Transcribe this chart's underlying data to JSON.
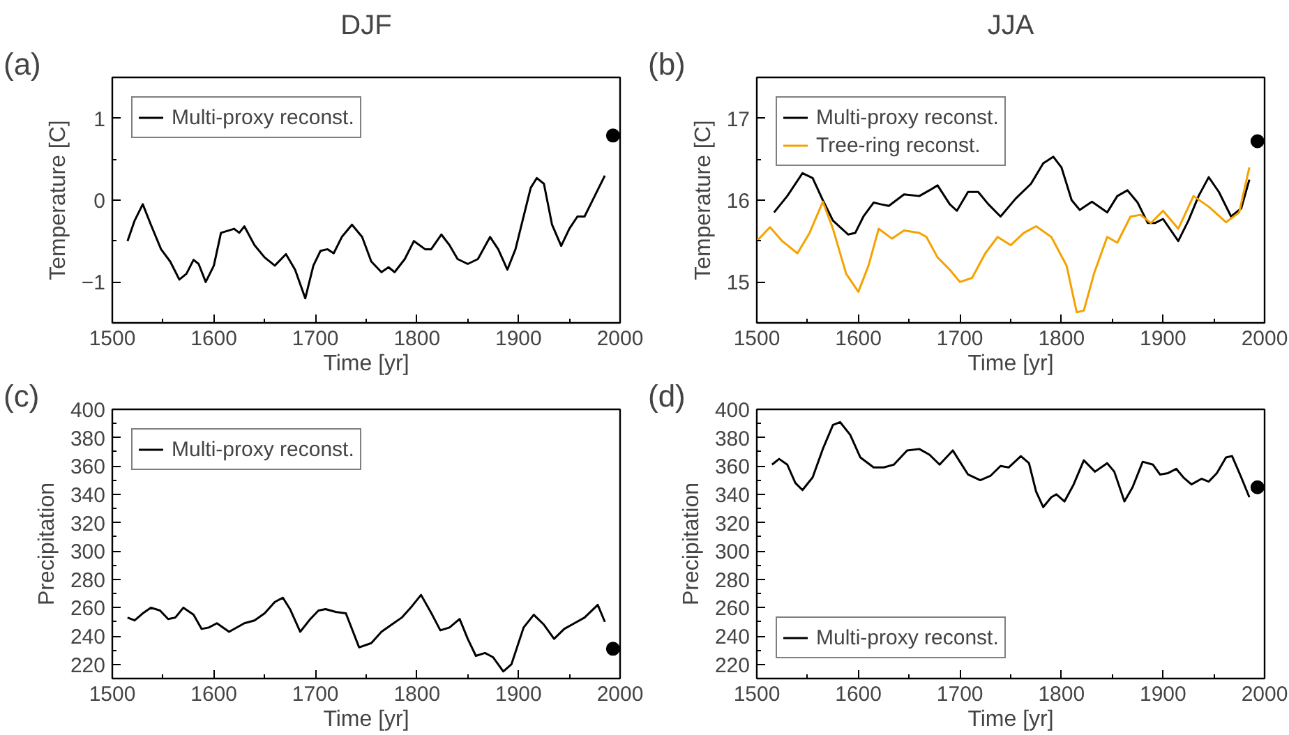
{
  "chart_data": [
    {
      "type": "line",
      "title": "DJF",
      "annotations": [
        "(a)"
      ],
      "xlabel": "Time [yr]",
      "ylabel": "Temperature [C]",
      "xlim": [
        1500,
        2000
      ],
      "ylim": [
        -1.5,
        1.5
      ],
      "xticks": [
        1500,
        {
          "value": 1550,
          "label": null
        },
        1600,
        {
          "value": 1650,
          "label": null
        },
        1700,
        {
          "value": 1750,
          "label": null
        },
        1800,
        {
          "value": 1850,
          "label": null
        },
        1900,
        {
          "value": 1950,
          "label": null
        },
        2000
      ],
      "yticks": [
        {
          "value": -1.5,
          "label": null
        },
        -1,
        {
          "value": -0.5,
          "label": null
        },
        0,
        {
          "value": 0.5,
          "label": null
        },
        1
      ],
      "legend": "top left",
      "grid": false,
      "series": [
        {
          "name": "Multi-proxy reconst.",
          "color": "#000000",
          "x": [
            1515,
            1522,
            1530,
            1538,
            1548,
            1557,
            1566,
            1573,
            1580,
            1585,
            1592,
            1600,
            1607,
            1615,
            1620,
            1625,
            1630,
            1640,
            1650,
            1660,
            1671,
            1680,
            1690,
            1698,
            1705,
            1712,
            1718,
            1726,
            1736,
            1746,
            1755,
            1765,
            1772,
            1778,
            1788,
            1797,
            1808,
            1814,
            1824,
            1832,
            1840,
            1850,
            1860,
            1872,
            1880,
            1889,
            1897,
            1905,
            1912,
            1918,
            1925,
            1933,
            1942,
            1950,
            1958,
            1965,
            1975,
            1985
          ],
          "values": [
            -0.5,
            -0.25,
            -0.05,
            -0.3,
            -0.6,
            -0.75,
            -0.97,
            -0.9,
            -0.73,
            -0.78,
            -1.0,
            -0.8,
            -0.4,
            -0.37,
            -0.35,
            -0.4,
            -0.32,
            -0.55,
            -0.7,
            -0.8,
            -0.66,
            -0.85,
            -1.2,
            -0.8,
            -0.62,
            -0.6,
            -0.65,
            -0.45,
            -0.3,
            -0.45,
            -0.75,
            -0.88,
            -0.82,
            -0.88,
            -0.72,
            -0.5,
            -0.6,
            -0.6,
            -0.42,
            -0.55,
            -0.72,
            -0.78,
            -0.72,
            -0.45,
            -0.6,
            -0.85,
            -0.6,
            -0.2,
            0.15,
            0.27,
            0.2,
            -0.3,
            -0.56,
            -0.35,
            -0.2,
            -0.2,
            0.05,
            0.3
          ]
        },
        {
          "type": "scatter",
          "marker": "circle",
          "color": "#000000",
          "x": [
            1993
          ],
          "values": [
            0.79
          ]
        }
      ]
    },
    {
      "type": "line",
      "title": "JJA",
      "annotations": [
        "(b)"
      ],
      "xlabel": "Time [yr]",
      "ylabel": "Temperature [C]",
      "xlim": [
        1500,
        2000
      ],
      "ylim": [
        14.5,
        17.5
      ],
      "xticks": [
        1500,
        {
          "value": 1550,
          "label": null
        },
        1600,
        {
          "value": 1650,
          "label": null
        },
        1700,
        {
          "value": 1750,
          "label": null
        },
        1800,
        {
          "value": 1850,
          "label": null
        },
        1900,
        {
          "value": 1950,
          "label": null
        },
        2000
      ],
      "yticks": [
        {
          "value": 14.5,
          "label": null
        },
        15,
        {
          "value": 15.5,
          "label": null
        },
        16,
        {
          "value": 16.5,
          "label": null
        },
        17
      ],
      "legend": "top left",
      "grid": false,
      "series": [
        {
          "name": "Multi-proxy reconst.",
          "color": "#000000",
          "x": [
            1517,
            1530,
            1545,
            1555,
            1565,
            1575,
            1590,
            1597,
            1605,
            1615,
            1622,
            1630,
            1645,
            1660,
            1670,
            1678,
            1690,
            1697,
            1708,
            1718,
            1728,
            1740,
            1755,
            1770,
            1782,
            1792,
            1800,
            1810,
            1818,
            1830,
            1845,
            1855,
            1865,
            1875,
            1885,
            1892,
            1900,
            1915,
            1925,
            1935,
            1945,
            1955,
            1967,
            1977,
            1985
          ],
          "values": [
            15.85,
            16.05,
            16.33,
            16.27,
            16.0,
            15.75,
            15.58,
            15.6,
            15.8,
            15.97,
            15.95,
            15.93,
            16.07,
            16.05,
            16.12,
            16.18,
            15.95,
            15.87,
            16.1,
            16.1,
            15.95,
            15.8,
            16.02,
            16.2,
            16.45,
            16.53,
            16.4,
            16.0,
            15.88,
            15.98,
            15.85,
            16.05,
            16.12,
            15.97,
            15.72,
            15.72,
            15.77,
            15.5,
            15.75,
            16.05,
            16.28,
            16.1,
            15.8,
            15.9,
            16.25
          ]
        },
        {
          "name": "Tree-ring reconst.",
          "color": "#f5a200",
          "x": [
            1500,
            1513,
            1525,
            1540,
            1552,
            1565,
            1575,
            1588,
            1600,
            1610,
            1620,
            1633,
            1645,
            1660,
            1667,
            1678,
            1690,
            1700,
            1712,
            1725,
            1737,
            1750,
            1763,
            1775,
            1790,
            1805,
            1815,
            1822,
            1832,
            1845,
            1855,
            1868,
            1878,
            1888,
            1900,
            1915,
            1930,
            1945,
            1962,
            1975,
            1985
          ],
          "values": [
            15.5,
            15.67,
            15.5,
            15.35,
            15.6,
            15.98,
            15.65,
            15.1,
            14.88,
            15.2,
            15.65,
            15.53,
            15.63,
            15.6,
            15.55,
            15.3,
            15.15,
            15.0,
            15.05,
            15.35,
            15.55,
            15.45,
            15.6,
            15.68,
            15.55,
            15.2,
            14.63,
            14.65,
            15.1,
            15.55,
            15.48,
            15.8,
            15.82,
            15.72,
            15.87,
            15.65,
            16.05,
            15.92,
            15.73,
            15.85,
            16.4
          ]
        },
        {
          "type": "scatter",
          "marker": "circle",
          "color": "#000000",
          "x": [
            1993
          ],
          "values": [
            16.72
          ]
        }
      ]
    },
    {
      "type": "line",
      "annotations": [
        "(c)"
      ],
      "xlabel": "Time [yr]",
      "ylabel": "Precipitation",
      "xlim": [
        1500,
        2000
      ],
      "ylim": [
        210,
        400
      ],
      "xticks": [
        1500,
        {
          "value": 1550,
          "label": null
        },
        1600,
        {
          "value": 1650,
          "label": null
        },
        1700,
        {
          "value": 1750,
          "label": null
        },
        1800,
        {
          "value": 1850,
          "label": null
        },
        1900,
        {
          "value": 1950,
          "label": null
        },
        2000
      ],
      "yticks": [
        220,
        {
          "value": 230,
          "label": null
        },
        240,
        {
          "value": 250,
          "label": null
        },
        260,
        {
          "value": 270,
          "label": null
        },
        280,
        {
          "value": 290,
          "label": null
        },
        300,
        {
          "value": 310,
          "label": null
        },
        320,
        {
          "value": 330,
          "label": null
        },
        340,
        {
          "value": 350,
          "label": null
        },
        360,
        {
          "value": 370,
          "label": null
        },
        380,
        {
          "value": 390,
          "label": null
        },
        400
      ],
      "legend": "top left",
      "grid": false,
      "series": [
        {
          "name": "Multi-proxy reconst.",
          "color": "#000000",
          "x": [
            1515,
            1522,
            1530,
            1538,
            1547,
            1555,
            1562,
            1570,
            1580,
            1588,
            1595,
            1603,
            1615,
            1630,
            1640,
            1650,
            1660,
            1668,
            1675,
            1685,
            1695,
            1703,
            1710,
            1720,
            1730,
            1743,
            1755,
            1765,
            1775,
            1785,
            1795,
            1804,
            1815,
            1823,
            1832,
            1842,
            1850,
            1858,
            1867,
            1875,
            1885,
            1893,
            1905,
            1915,
            1925,
            1935,
            1945,
            1955,
            1965,
            1978,
            1985
          ],
          "values": [
            253,
            251,
            256,
            260,
            258,
            252,
            253,
            260,
            255,
            245,
            246,
            249,
            243,
            249,
            251,
            256,
            264,
            267,
            259,
            243,
            252,
            258,
            259,
            257,
            256,
            232,
            235,
            243,
            248,
            253,
            261,
            269,
            255,
            244,
            246,
            252,
            238,
            226,
            228,
            225,
            215,
            220,
            246,
            255,
            248,
            238,
            245,
            249,
            253,
            262,
            250
          ]
        },
        {
          "type": "scatter",
          "marker": "circle",
          "color": "#000000",
          "x": [
            1993
          ],
          "values": [
            231
          ]
        }
      ]
    },
    {
      "type": "line",
      "annotations": [
        "(d)"
      ],
      "xlabel": "Time [yr]",
      "ylabel": "Precipitation",
      "xlim": [
        1500,
        2000
      ],
      "ylim": [
        210,
        400
      ],
      "xticks": [
        1500,
        {
          "value": 1550,
          "label": null
        },
        1600,
        {
          "value": 1650,
          "label": null
        },
        1700,
        {
          "value": 1750,
          "label": null
        },
        1800,
        {
          "value": 1850,
          "label": null
        },
        1900,
        {
          "value": 1950,
          "label": null
        },
        2000
      ],
      "yticks": [
        220,
        {
          "value": 230,
          "label": null
        },
        240,
        {
          "value": 250,
          "label": null
        },
        260,
        {
          "value": 270,
          "label": null
        },
        280,
        {
          "value": 290,
          "label": null
        },
        300,
        {
          "value": 310,
          "label": null
        },
        320,
        {
          "value": 330,
          "label": null
        },
        340,
        {
          "value": 350,
          "label": null
        },
        360,
        {
          "value": 370,
          "label": null
        },
        380,
        {
          "value": 390,
          "label": null
        },
        400
      ],
      "legend": "bottom left",
      "grid": false,
      "series": [
        {
          "name": "Multi-proxy reconst.",
          "color": "#000000",
          "x": [
            1515,
            1522,
            1530,
            1538,
            1545,
            1555,
            1565,
            1575,
            1582,
            1592,
            1602,
            1615,
            1625,
            1635,
            1648,
            1660,
            1670,
            1680,
            1693,
            1700,
            1708,
            1720,
            1730,
            1740,
            1748,
            1760,
            1768,
            1775,
            1782,
            1790,
            1795,
            1803,
            1812,
            1822,
            1833,
            1845,
            1852,
            1862,
            1870,
            1880,
            1890,
            1897,
            1905,
            1913,
            1920,
            1928,
            1938,
            1945,
            1953,
            1962,
            1968,
            1977,
            1985
          ],
          "values": [
            361,
            365,
            361,
            348,
            343,
            352,
            372,
            389,
            391,
            382,
            366,
            359,
            359,
            361,
            371,
            372,
            368,
            361,
            371,
            363,
            354,
            350,
            353,
            360,
            359,
            367,
            362,
            342,
            331,
            338,
            340,
            335,
            347,
            364,
            356,
            362,
            356,
            335,
            345,
            363,
            361,
            354,
            355,
            358,
            352,
            347,
            351,
            349,
            355,
            366,
            367,
            352,
            338
          ]
        },
        {
          "type": "scatter",
          "marker": "circle",
          "color": "#000000",
          "x": [
            1993
          ],
          "values": [
            345
          ]
        }
      ]
    }
  ]
}
